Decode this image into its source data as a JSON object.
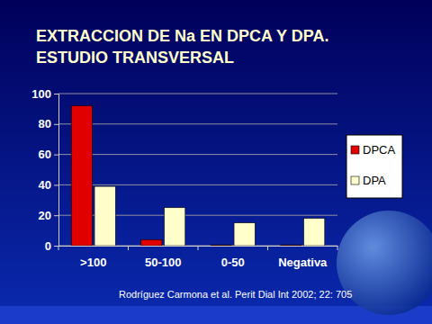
{
  "chart_data": {
    "type": "bar",
    "title": "EXTRACCION DE Na EN DPCA Y DPA.",
    "subtitle": "ESTUDIO TRANSVERSAL",
    "annotations": [
      "Rodríguez Carmona et al. Perit Dial Int 2002; 22: 705"
    ],
    "categories": [
      ">100",
      "50-100",
      "0-50",
      "Negativa"
    ],
    "series": [
      {
        "name": "DPCA",
        "color": "#e00000",
        "values": [
          92,
          4,
          0.5,
          0.5
        ]
      },
      {
        "name": "DPA",
        "color": "#ffffcc",
        "values": [
          39,
          25,
          15,
          18
        ]
      }
    ],
    "ylim": [
      0,
      100
    ],
    "yticks": [
      0,
      20,
      40,
      60,
      80,
      100
    ],
    "grid": true,
    "legend": "right"
  }
}
